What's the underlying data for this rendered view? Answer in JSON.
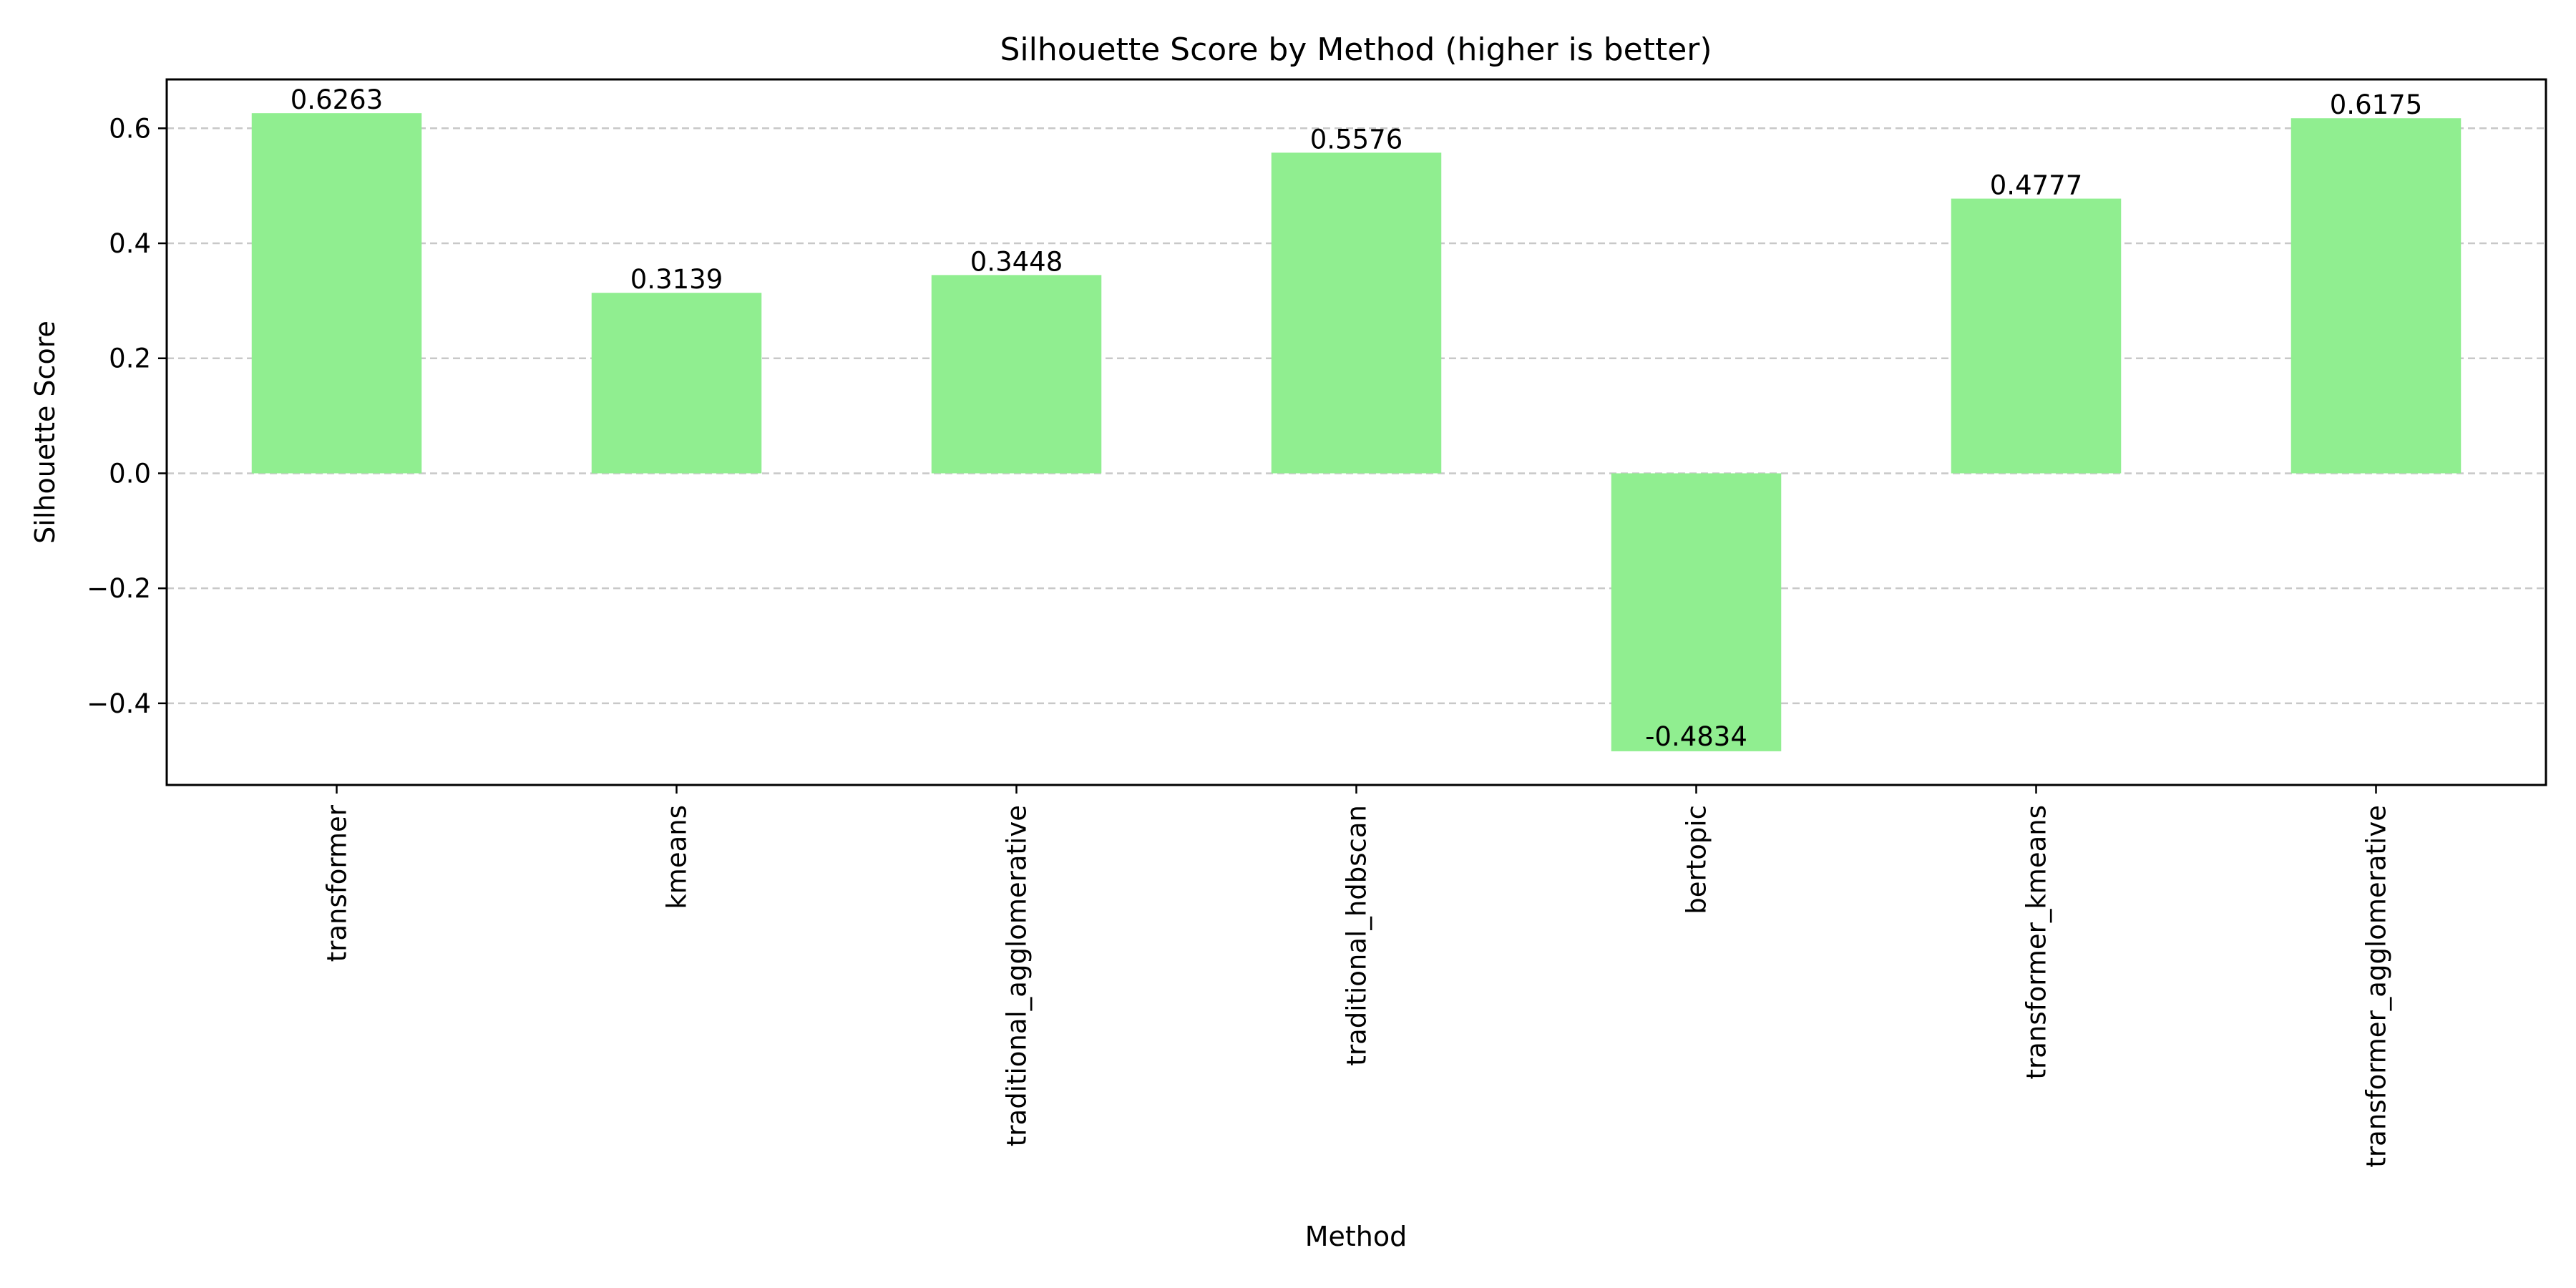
{
  "chart_data": {
    "type": "bar",
    "title": "Silhouette Score by Method (higher is better)",
    "xlabel": "Method",
    "ylabel": "Silhouette Score",
    "categories": [
      "transformer",
      "kmeans",
      "traditional_agglomerative",
      "traditional_hdbscan",
      "bertopic",
      "transformer_kmeans",
      "transformer_agglomerative"
    ],
    "values": [
      0.6263,
      0.3139,
      0.3448,
      0.5576,
      -0.4834,
      0.4777,
      0.6175
    ],
    "value_labels": [
      "0.6263",
      "0.3139",
      "0.3448",
      "0.5576",
      "-0.4834",
      "0.4777",
      "0.6175"
    ],
    "ylim": [
      -0.542,
      0.685
    ],
    "yticks": [
      -0.4,
      -0.2,
      0.0,
      0.2,
      0.4,
      0.6
    ],
    "ytick_labels": [
      "−0.4",
      "−0.2",
      "0.0",
      "0.2",
      "0.4",
      "0.6"
    ],
    "grid": "y-dashed",
    "bar_color": "#90ee90",
    "grid_color": "#c8c8c8"
  }
}
